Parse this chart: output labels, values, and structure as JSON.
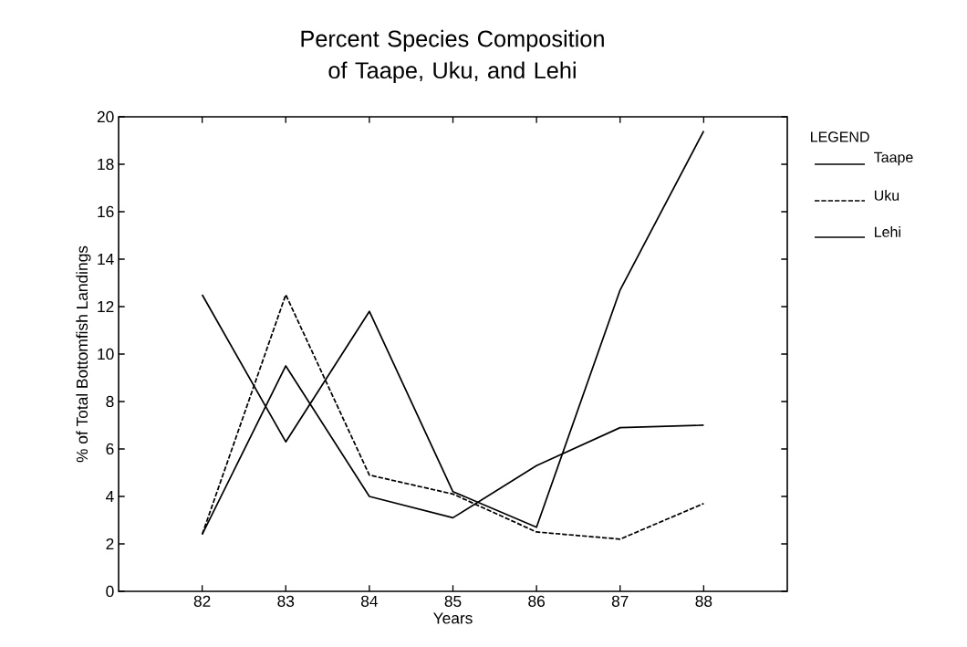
{
  "chart_data": {
    "type": "line",
    "title": "Percent Species Composition of Taape, Uku, and Lehi",
    "xlabel": "Years",
    "ylabel": "% of Total Bottomfish Landings",
    "legend_title": "LEGEND",
    "x": [
      82,
      83,
      84,
      85,
      86,
      87,
      88
    ],
    "series": [
      {
        "name": "Taape",
        "color": "#000000",
        "line_style": "solid",
        "values": [
          12.5,
          6.3,
          11.8,
          4.2,
          2.7,
          12.7,
          19.4
        ]
      },
      {
        "name": "Uku",
        "color": "#000000",
        "line_style": "dashed",
        "values": [
          2.4,
          12.5,
          4.9,
          4.1,
          2.5,
          2.2,
          3.7
        ]
      },
      {
        "name": "Lehi",
        "color": "#000000",
        "line_style": "solid",
        "values": [
          2.4,
          9.5,
          4.0,
          3.1,
          5.3,
          6.9,
          7.0
        ]
      }
    ],
    "xlim": [
      81,
      89
    ],
    "xticks": [
      82,
      83,
      84,
      85,
      86,
      87,
      88
    ],
    "ylim": [
      0,
      20
    ],
    "yticks": [
      0,
      2,
      4,
      6,
      8,
      10,
      12,
      14,
      16,
      18,
      20
    ],
    "grid": false,
    "legend": "right",
    "marker": "none"
  }
}
